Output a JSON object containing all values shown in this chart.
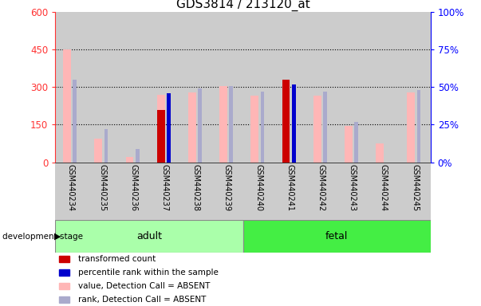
{
  "title": "GDS3814 / 213120_at",
  "samples": [
    "GSM440234",
    "GSM440235",
    "GSM440236",
    "GSM440237",
    "GSM440238",
    "GSM440239",
    "GSM440240",
    "GSM440241",
    "GSM440242",
    "GSM440243",
    "GSM440244",
    "GSM440245"
  ],
  "transformed_count": [
    null,
    null,
    null,
    210,
    null,
    null,
    null,
    330,
    null,
    null,
    null,
    null
  ],
  "percentile_rank_pct": [
    null,
    null,
    null,
    46,
    null,
    null,
    null,
    52,
    null,
    null,
    null,
    null
  ],
  "value_absent": [
    450,
    95,
    22,
    270,
    280,
    305,
    265,
    null,
    265,
    145,
    75,
    280
  ],
  "rank_absent_pct": [
    55,
    22,
    9,
    null,
    49,
    51,
    47,
    null,
    47,
    27,
    null,
    48
  ],
  "left_ylim": [
    0,
    600
  ],
  "right_ylim": [
    0,
    100
  ],
  "left_yticks": [
    0,
    150,
    300,
    450,
    600
  ],
  "right_yticks": [
    0,
    25,
    50,
    75,
    100
  ],
  "left_yticklabels": [
    "0",
    "150",
    "300",
    "450",
    "600"
  ],
  "right_yticklabels": [
    "0%",
    "25%",
    "50%",
    "75%",
    "100%"
  ],
  "left_axis_color": "#ff3333",
  "right_axis_color": "#0000ff",
  "bar_width": 0.25,
  "adult_color": "#aaffaa",
  "fetal_color": "#44ee44",
  "bg_color": "#cccccc",
  "color_tc": "#cc0000",
  "color_pr": "#0000cc",
  "color_va": "#ffb6b6",
  "color_ra": "#aaaacc",
  "legend_items": [
    {
      "label": "transformed count",
      "color": "#cc0000"
    },
    {
      "label": "percentile rank within the sample",
      "color": "#0000cc"
    },
    {
      "label": "value, Detection Call = ABSENT",
      "color": "#ffb6b6"
    },
    {
      "label": "rank, Detection Call = ABSENT",
      "color": "#aaaacc"
    }
  ]
}
